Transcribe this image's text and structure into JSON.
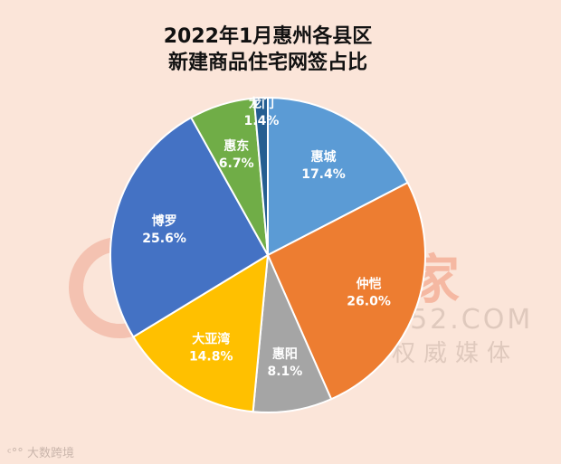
{
  "title": {
    "line1": "2022年1月惠州各县区",
    "line2": "新建商品住宅网签占比"
  },
  "watermark": {
    "brand": "惠民之家",
    "url": "WWW.FZ0752.COM",
    "slogan": "惠州房地产权威媒体"
  },
  "source": {
    "label": "大数跨境"
  },
  "chart_data": {
    "type": "pie",
    "title": "2022年1月惠州各县区新建商品住宅网签占比",
    "start_angle": "12 o'clock, clockwise",
    "categories": [
      "惠城",
      "仲恺",
      "惠阳",
      "大亚湾",
      "博罗",
      "惠东",
      "龙门"
    ],
    "values": [
      17.4,
      26.0,
      8.1,
      14.8,
      25.6,
      6.7,
      1.4
    ],
    "labels": [
      "17.4%",
      "26.0%",
      "8.1%",
      "14.8%",
      "25.6%",
      "6.7%",
      "1.4%"
    ],
    "colors": [
      "#5b9bd5",
      "#ed7d31",
      "#a5a5a5",
      "#ffc000",
      "#4472c4",
      "#70ad47",
      "#255e91"
    ],
    "legend": "none (labels on slices)"
  }
}
